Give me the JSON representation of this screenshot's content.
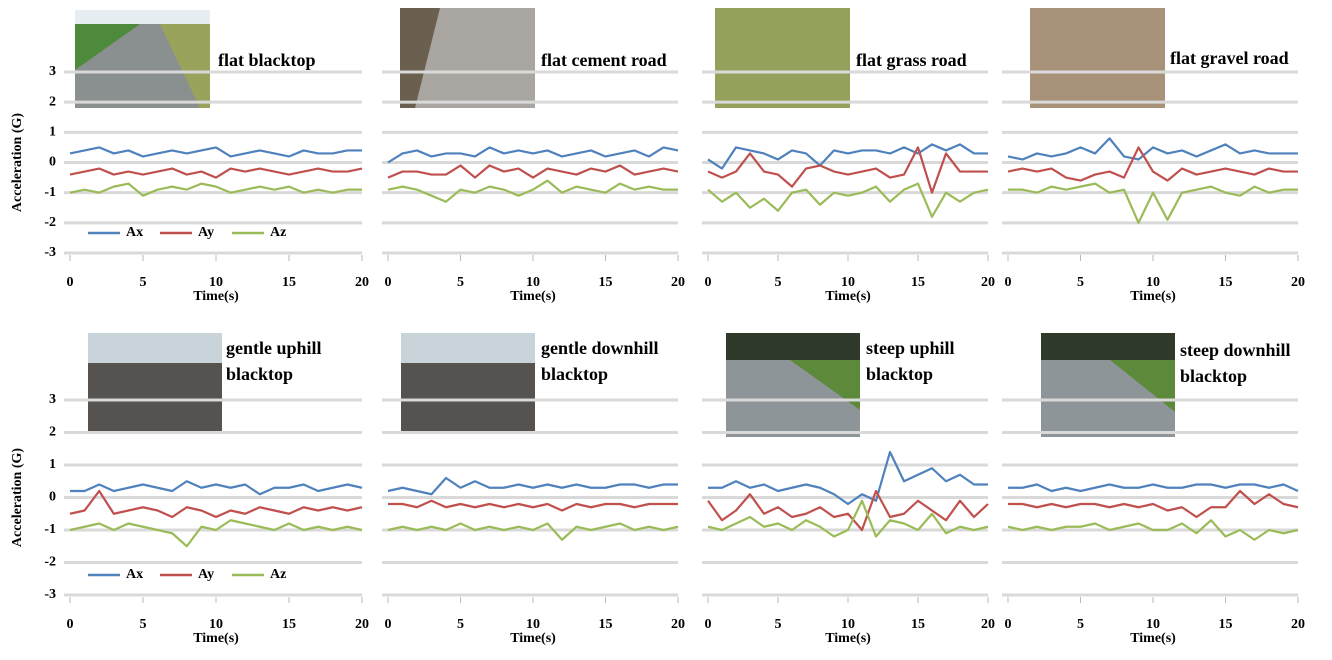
{
  "chart_data": [
    {
      "type": "line",
      "title": "flat blacktop",
      "ylabel": "Acceleration (G)",
      "xlabel": "Time(s)",
      "legend": true,
      "ytick_labels": true,
      "grid": true,
      "x": [
        0,
        1,
        2,
        3,
        4,
        5,
        6,
        7,
        8,
        9,
        10,
        11,
        12,
        13,
        14,
        15,
        16,
        17,
        18,
        19,
        20
      ],
      "xlim": [
        0,
        20
      ],
      "xticks": [
        0,
        5,
        10,
        15,
        20
      ],
      "ylim": [
        -3,
        3
      ],
      "yticks": [
        3,
        2,
        1,
        0,
        -1,
        -2,
        -3
      ],
      "series": [
        {
          "name": "Ax",
          "color": "#4f81bd",
          "values": [
            0.3,
            0.4,
            0.5,
            0.3,
            0.4,
            0.2,
            0.3,
            0.4,
            0.3,
            0.4,
            0.5,
            0.2,
            0.3,
            0.4,
            0.3,
            0.2,
            0.4,
            0.3,
            0.3,
            0.4,
            0.4
          ]
        },
        {
          "name": "Ay",
          "color": "#c0504d",
          "values": [
            -0.4,
            -0.3,
            -0.2,
            -0.4,
            -0.3,
            -0.4,
            -0.3,
            -0.2,
            -0.4,
            -0.3,
            -0.5,
            -0.2,
            -0.3,
            -0.2,
            -0.3,
            -0.4,
            -0.3,
            -0.2,
            -0.3,
            -0.3,
            -0.2
          ]
        },
        {
          "name": "Az",
          "color": "#9bbb59",
          "values": [
            -1.0,
            -0.9,
            -1.0,
            -0.8,
            -0.7,
            -1.1,
            -0.9,
            -0.8,
            -0.9,
            -0.7,
            -0.8,
            -1.0,
            -0.9,
            -0.8,
            -0.9,
            -0.8,
            -1.0,
            -0.9,
            -1.0,
            -0.9,
            -0.9
          ]
        }
      ]
    },
    {
      "type": "line",
      "title": "flat cement road",
      "xlabel": "Time(s)",
      "legend": false,
      "ytick_labels": false,
      "grid": true,
      "x": [
        0,
        1,
        2,
        3,
        4,
        5,
        6,
        7,
        8,
        9,
        10,
        11,
        12,
        13,
        14,
        15,
        16,
        17,
        18,
        19,
        20
      ],
      "xlim": [
        0,
        20
      ],
      "xticks": [
        0,
        5,
        10,
        15,
        20
      ],
      "ylim": [
        -3,
        3
      ],
      "yticks": [
        3,
        2,
        1,
        0,
        -1,
        -2,
        -3
      ],
      "series": [
        {
          "name": "Ax",
          "color": "#4f81bd",
          "values": [
            0.0,
            0.3,
            0.4,
            0.2,
            0.3,
            0.3,
            0.2,
            0.5,
            0.3,
            0.4,
            0.3,
            0.4,
            0.2,
            0.3,
            0.4,
            0.2,
            0.3,
            0.4,
            0.2,
            0.5,
            0.4
          ]
        },
        {
          "name": "Ay",
          "color": "#c0504d",
          "values": [
            -0.5,
            -0.3,
            -0.3,
            -0.4,
            -0.4,
            -0.1,
            -0.5,
            -0.1,
            -0.3,
            -0.2,
            -0.5,
            -0.2,
            -0.3,
            -0.4,
            -0.2,
            -0.3,
            -0.1,
            -0.4,
            -0.3,
            -0.2,
            -0.3
          ]
        },
        {
          "name": "Az",
          "color": "#9bbb59",
          "values": [
            -0.9,
            -0.8,
            -0.9,
            -1.1,
            -1.3,
            -0.9,
            -1.0,
            -0.8,
            -0.9,
            -1.1,
            -0.9,
            -0.6,
            -1.0,
            -0.8,
            -0.9,
            -1.0,
            -0.7,
            -0.9,
            -0.8,
            -0.9,
            -0.9
          ]
        }
      ]
    },
    {
      "type": "line",
      "title": "flat grass road",
      "xlabel": "Time(s)",
      "legend": false,
      "ytick_labels": false,
      "grid": true,
      "x": [
        0,
        1,
        2,
        3,
        4,
        5,
        6,
        7,
        8,
        9,
        10,
        11,
        12,
        13,
        14,
        15,
        16,
        17,
        18,
        19,
        20
      ],
      "xlim": [
        0,
        20
      ],
      "xticks": [
        0,
        5,
        10,
        15,
        20
      ],
      "ylim": [
        -3,
        3
      ],
      "yticks": [
        3,
        2,
        1,
        0,
        -1,
        -2,
        -3
      ],
      "series": [
        {
          "name": "Ax",
          "color": "#4f81bd",
          "values": [
            0.1,
            -0.2,
            0.5,
            0.4,
            0.3,
            0.1,
            0.4,
            0.3,
            -0.1,
            0.4,
            0.3,
            0.4,
            0.4,
            0.3,
            0.5,
            0.3,
            0.6,
            0.4,
            0.6,
            0.3,
            0.3
          ]
        },
        {
          "name": "Ay",
          "color": "#c0504d",
          "values": [
            -0.3,
            -0.5,
            -0.3,
            0.3,
            -0.3,
            -0.4,
            -0.8,
            -0.2,
            -0.1,
            -0.3,
            -0.4,
            -0.3,
            -0.2,
            -0.5,
            -0.4,
            0.5,
            -1.0,
            0.3,
            -0.3,
            -0.3,
            -0.3
          ]
        },
        {
          "name": "Az",
          "color": "#9bbb59",
          "values": [
            -0.9,
            -1.3,
            -1.0,
            -1.5,
            -1.2,
            -1.6,
            -1.0,
            -0.9,
            -1.4,
            -1.0,
            -1.1,
            -1.0,
            -0.8,
            -1.3,
            -0.9,
            -0.7,
            -1.8,
            -1.0,
            -1.3,
            -1.0,
            -0.9
          ]
        }
      ]
    },
    {
      "type": "line",
      "title": "flat gravel road",
      "xlabel": "Time(s)",
      "legend": false,
      "ytick_labels": false,
      "grid": true,
      "x": [
        0,
        1,
        2,
        3,
        4,
        5,
        6,
        7,
        8,
        9,
        10,
        11,
        12,
        13,
        14,
        15,
        16,
        17,
        18,
        19,
        20
      ],
      "xlim": [
        0,
        20
      ],
      "xticks": [
        0,
        5,
        10,
        15,
        20
      ],
      "ylim": [
        -3,
        3
      ],
      "yticks": [
        3,
        2,
        1,
        0,
        -1,
        -2,
        -3
      ],
      "series": [
        {
          "name": "Ax",
          "color": "#4f81bd",
          "values": [
            0.2,
            0.1,
            0.3,
            0.2,
            0.3,
            0.5,
            0.3,
            0.8,
            0.2,
            0.1,
            0.5,
            0.3,
            0.4,
            0.2,
            0.4,
            0.6,
            0.3,
            0.4,
            0.3,
            0.3,
            0.3
          ]
        },
        {
          "name": "Ay",
          "color": "#c0504d",
          "values": [
            -0.3,
            -0.2,
            -0.3,
            -0.2,
            -0.5,
            -0.6,
            -0.4,
            -0.3,
            -0.5,
            0.5,
            -0.3,
            -0.6,
            -0.2,
            -0.4,
            -0.3,
            -0.2,
            -0.3,
            -0.4,
            -0.2,
            -0.3,
            -0.3
          ]
        },
        {
          "name": "Az",
          "color": "#9bbb59",
          "values": [
            -0.9,
            -0.9,
            -1.0,
            -0.8,
            -0.9,
            -0.8,
            -0.7,
            -1.0,
            -0.9,
            -2.0,
            -1.0,
            -1.9,
            -1.0,
            -0.9,
            -0.8,
            -1.0,
            -1.1,
            -0.8,
            -1.0,
            -0.9,
            -0.9
          ]
        }
      ]
    },
    {
      "type": "line",
      "title": "gentle uphill blacktop",
      "ylabel": "Acceleration (G)",
      "xlabel": "Time(s)",
      "legend": true,
      "ytick_labels": true,
      "grid": true,
      "x": [
        0,
        1,
        2,
        3,
        4,
        5,
        6,
        7,
        8,
        9,
        10,
        11,
        12,
        13,
        14,
        15,
        16,
        17,
        18,
        19,
        20
      ],
      "xlim": [
        0,
        20
      ],
      "xticks": [
        0,
        5,
        10,
        15,
        20
      ],
      "ylim": [
        -3,
        3
      ],
      "yticks": [
        3,
        2,
        1,
        0,
        -1,
        -2,
        -3
      ],
      "series": [
        {
          "name": "Ax",
          "color": "#4f81bd",
          "values": [
            0.2,
            0.2,
            0.4,
            0.2,
            0.3,
            0.4,
            0.3,
            0.2,
            0.5,
            0.3,
            0.4,
            0.3,
            0.4,
            0.1,
            0.3,
            0.3,
            0.4,
            0.2,
            0.3,
            0.4,
            0.3
          ]
        },
        {
          "name": "Ay",
          "color": "#c0504d",
          "values": [
            -0.5,
            -0.4,
            0.2,
            -0.5,
            -0.4,
            -0.3,
            -0.4,
            -0.6,
            -0.3,
            -0.4,
            -0.6,
            -0.4,
            -0.5,
            -0.3,
            -0.4,
            -0.5,
            -0.3,
            -0.4,
            -0.3,
            -0.4,
            -0.3
          ]
        },
        {
          "name": "Az",
          "color": "#9bbb59",
          "values": [
            -1.0,
            -0.9,
            -0.8,
            -1.0,
            -0.8,
            -0.9,
            -1.0,
            -1.1,
            -1.5,
            -0.9,
            -1.0,
            -0.7,
            -0.8,
            -0.9,
            -1.0,
            -0.8,
            -1.0,
            -0.9,
            -1.0,
            -0.9,
            -1.0
          ]
        }
      ]
    },
    {
      "type": "line",
      "title": "gentle downhill blacktop",
      "xlabel": "Time(s)",
      "legend": false,
      "ytick_labels": false,
      "grid": true,
      "x": [
        0,
        1,
        2,
        3,
        4,
        5,
        6,
        7,
        8,
        9,
        10,
        11,
        12,
        13,
        14,
        15,
        16,
        17,
        18,
        19,
        20
      ],
      "xlim": [
        0,
        20
      ],
      "xticks": [
        0,
        5,
        10,
        15,
        20
      ],
      "ylim": [
        -3,
        3
      ],
      "yticks": [
        3,
        2,
        1,
        0,
        -1,
        -2,
        -3
      ],
      "series": [
        {
          "name": "Ax",
          "color": "#4f81bd",
          "values": [
            0.2,
            0.3,
            0.2,
            0.1,
            0.6,
            0.3,
            0.5,
            0.3,
            0.3,
            0.4,
            0.3,
            0.4,
            0.3,
            0.4,
            0.3,
            0.3,
            0.4,
            0.4,
            0.3,
            0.4,
            0.4
          ]
        },
        {
          "name": "Ay",
          "color": "#c0504d",
          "values": [
            -0.2,
            -0.2,
            -0.3,
            -0.1,
            -0.3,
            -0.2,
            -0.3,
            -0.2,
            -0.3,
            -0.2,
            -0.3,
            -0.2,
            -0.4,
            -0.2,
            -0.3,
            -0.2,
            -0.2,
            -0.3,
            -0.2,
            -0.2,
            -0.2
          ]
        },
        {
          "name": "Az",
          "color": "#9bbb59",
          "values": [
            -1.0,
            -0.9,
            -1.0,
            -0.9,
            -1.0,
            -0.8,
            -1.0,
            -0.9,
            -1.0,
            -0.9,
            -1.0,
            -0.8,
            -1.3,
            -0.9,
            -1.0,
            -0.9,
            -0.8,
            -1.0,
            -0.9,
            -1.0,
            -0.9
          ]
        }
      ]
    },
    {
      "type": "line",
      "title": "steep uphill blacktop",
      "xlabel": "Time(s)",
      "legend": false,
      "ytick_labels": false,
      "grid": true,
      "x": [
        0,
        1,
        2,
        3,
        4,
        5,
        6,
        7,
        8,
        9,
        10,
        11,
        12,
        13,
        14,
        15,
        16,
        17,
        18,
        19,
        20
      ],
      "xlim": [
        0,
        20
      ],
      "xticks": [
        0,
        5,
        10,
        15,
        20
      ],
      "ylim": [
        -3,
        3
      ],
      "yticks": [
        3,
        2,
        1,
        0,
        -1,
        -2,
        -3
      ],
      "series": [
        {
          "name": "Ax",
          "color": "#4f81bd",
          "values": [
            0.3,
            0.3,
            0.5,
            0.3,
            0.4,
            0.2,
            0.3,
            0.4,
            0.3,
            0.1,
            -0.2,
            0.1,
            -0.1,
            1.4,
            0.5,
            0.7,
            0.9,
            0.5,
            0.7,
            0.4,
            0.4
          ]
        },
        {
          "name": "Ay",
          "color": "#c0504d",
          "values": [
            -0.1,
            -0.7,
            -0.4,
            0.1,
            -0.5,
            -0.3,
            -0.6,
            -0.5,
            -0.3,
            -0.6,
            -0.5,
            -1.0,
            0.2,
            -0.6,
            -0.5,
            -0.1,
            -0.4,
            -0.7,
            -0.1,
            -0.6,
            -0.2
          ]
        },
        {
          "name": "Az",
          "color": "#9bbb59",
          "values": [
            -0.9,
            -1.0,
            -0.8,
            -0.6,
            -0.9,
            -0.8,
            -1.0,
            -0.7,
            -0.9,
            -1.2,
            -1.0,
            -0.1,
            -1.2,
            -0.7,
            -0.8,
            -1.0,
            -0.5,
            -1.1,
            -0.9,
            -1.0,
            -0.9
          ]
        }
      ]
    },
    {
      "type": "line",
      "title": "steep downhill blacktop",
      "xlabel": "Time(s)",
      "legend": false,
      "ytick_labels": false,
      "grid": true,
      "x": [
        0,
        1,
        2,
        3,
        4,
        5,
        6,
        7,
        8,
        9,
        10,
        11,
        12,
        13,
        14,
        15,
        16,
        17,
        18,
        19,
        20
      ],
      "xlim": [
        0,
        20
      ],
      "xticks": [
        0,
        5,
        10,
        15,
        20
      ],
      "ylim": [
        -3,
        3
      ],
      "yticks": [
        3,
        2,
        1,
        0,
        -1,
        -2,
        -3
      ],
      "series": [
        {
          "name": "Ax",
          "color": "#4f81bd",
          "values": [
            0.3,
            0.3,
            0.4,
            0.2,
            0.3,
            0.2,
            0.3,
            0.4,
            0.3,
            0.3,
            0.4,
            0.3,
            0.3,
            0.4,
            0.4,
            0.3,
            0.4,
            0.4,
            0.3,
            0.4,
            0.2
          ]
        },
        {
          "name": "Ay",
          "color": "#c0504d",
          "values": [
            -0.2,
            -0.2,
            -0.3,
            -0.2,
            -0.3,
            -0.2,
            -0.2,
            -0.3,
            -0.2,
            -0.3,
            -0.2,
            -0.4,
            -0.3,
            -0.6,
            -0.3,
            -0.3,
            0.2,
            -0.2,
            0.1,
            -0.2,
            -0.3
          ]
        },
        {
          "name": "Az",
          "color": "#9bbb59",
          "values": [
            -0.9,
            -1.0,
            -0.9,
            -1.0,
            -0.9,
            -0.9,
            -0.8,
            -1.0,
            -0.9,
            -0.8,
            -1.0,
            -1.0,
            -0.8,
            -1.1,
            -0.7,
            -1.2,
            -1.0,
            -1.3,
            -1.0,
            -1.1,
            -1.0
          ]
        }
      ]
    }
  ]
}
